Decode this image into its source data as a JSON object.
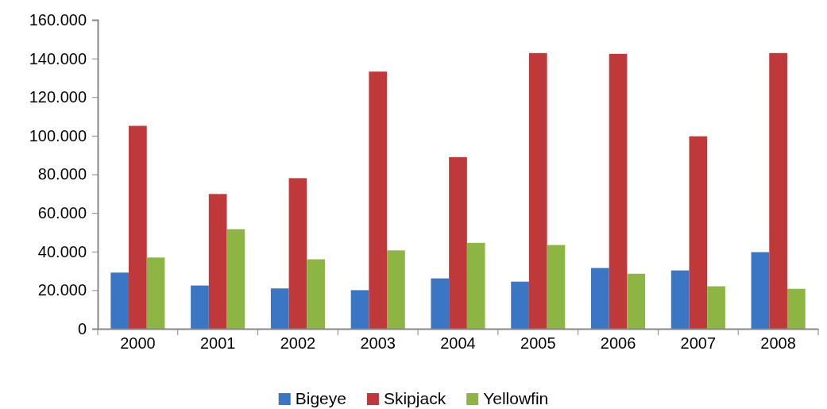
{
  "chart_data": {
    "type": "bar",
    "categories": [
      "2000",
      "2001",
      "2002",
      "2003",
      "2004",
      "2005",
      "2006",
      "2007",
      "2008"
    ],
    "series": [
      {
        "name": "Bigeye",
        "color": "#3a76c4",
        "values": [
          29100,
          22400,
          20900,
          20000,
          26100,
          24400,
          31500,
          30200,
          39700
        ]
      },
      {
        "name": "Skipjack",
        "color": "#c0393a",
        "values": [
          105100,
          69800,
          78000,
          133200,
          88900,
          142800,
          142400,
          99700,
          142800
        ]
      },
      {
        "name": "Yellowfin",
        "color": "#8db543",
        "values": [
          36900,
          51600,
          36000,
          40600,
          44500,
          43400,
          28500,
          22000,
          20700
        ]
      }
    ],
    "ylim": [
      0,
      160000
    ],
    "yticks": [
      0,
      {
        "value": 20000,
        "label": "20.000"
      },
      {
        "value": 40000,
        "label": "40.000"
      },
      {
        "value": 60000,
        "label": "60.000"
      },
      {
        "value": 80000,
        "label": "80.000"
      },
      {
        "value": 100000,
        "label": "100.000"
      },
      {
        "value": 120000,
        "label": "120.000"
      },
      {
        "value": 140000,
        "label": "140.000"
      },
      {
        "value": 160000,
        "label": "160.000"
      }
    ],
    "grid": false,
    "legend": "bottom"
  }
}
